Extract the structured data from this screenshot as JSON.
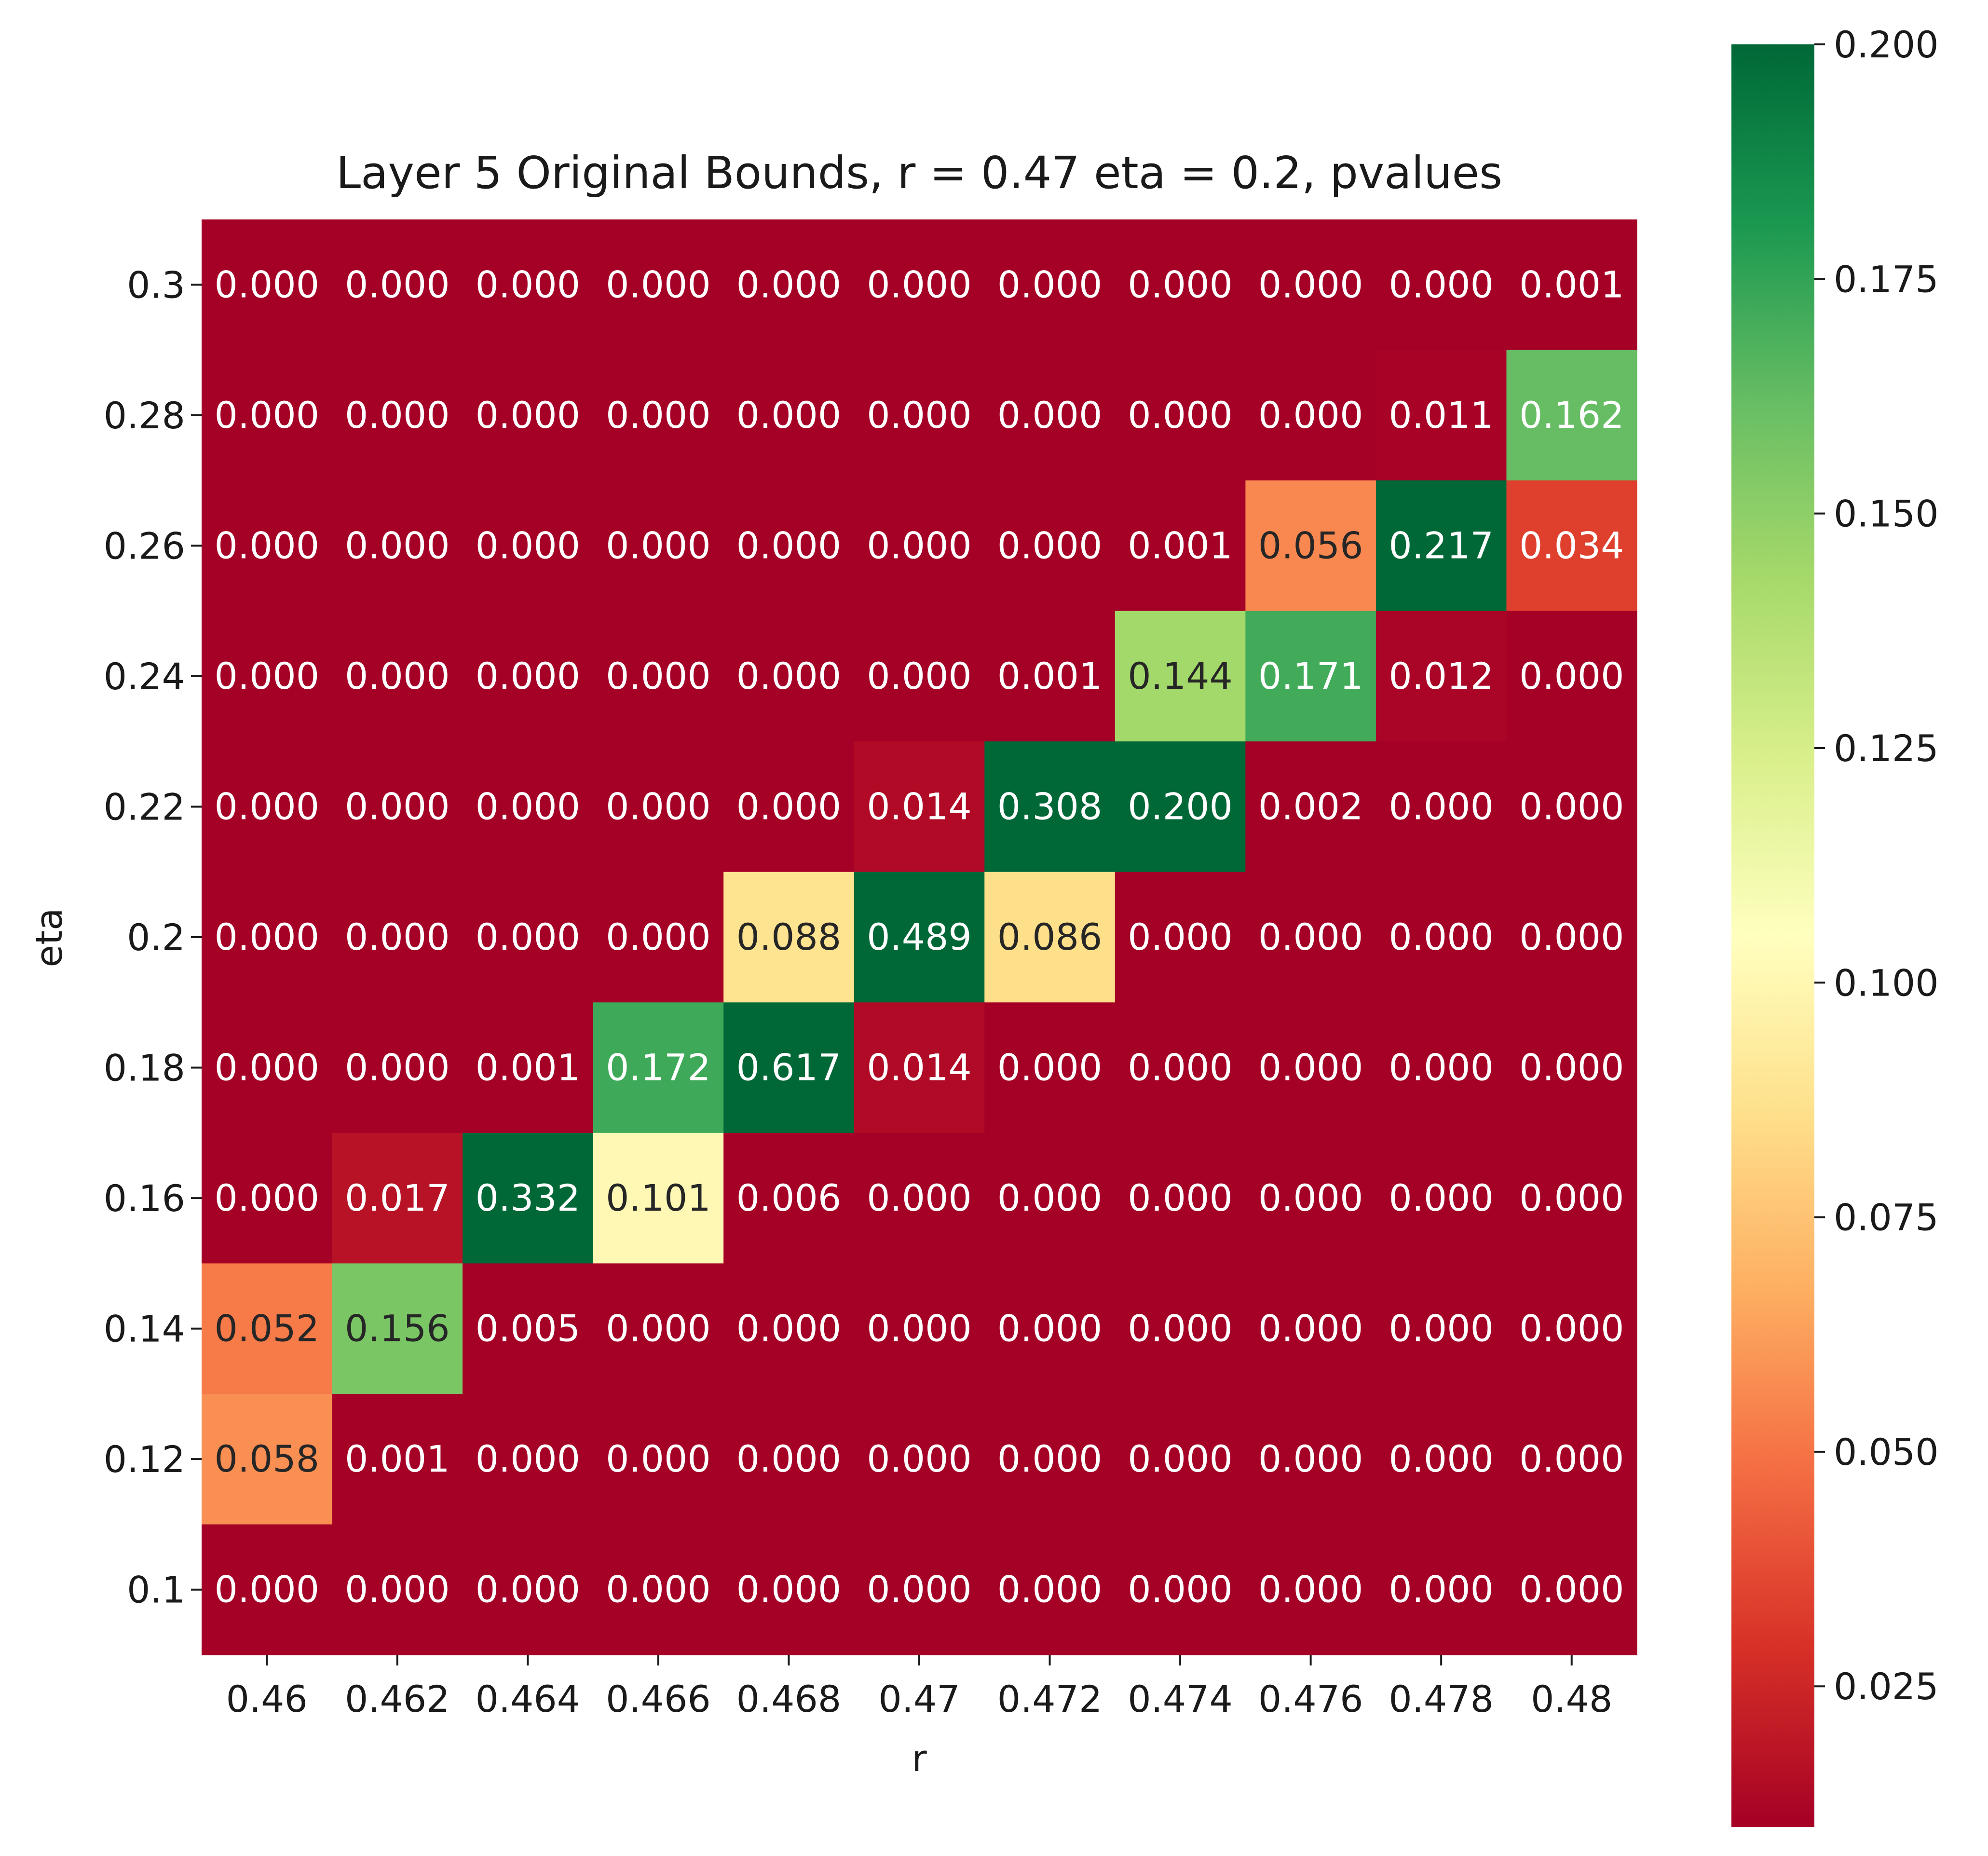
{
  "chart_data": {
    "type": "heatmap",
    "title": "Layer 5 Original Bounds, r = 0.47 eta = 0.2, pvalues",
    "xlabel": "r",
    "ylabel": "eta",
    "x_ticks": [
      "0.46",
      "0.462",
      "0.464",
      "0.466",
      "0.468",
      "0.47",
      "0.472",
      "0.474",
      "0.476",
      "0.478",
      "0.48"
    ],
    "y_ticks": [
      "0.3",
      "0.28",
      "0.26",
      "0.24",
      "0.22",
      "0.2",
      "0.18",
      "0.16",
      "0.14",
      "0.12",
      "0.1"
    ],
    "values": [
      [
        0.0,
        0.0,
        0.0,
        0.0,
        0.0,
        0.0,
        0.0,
        0.0,
        0.0,
        0.0,
        0.001
      ],
      [
        0.0,
        0.0,
        0.0,
        0.0,
        0.0,
        0.0,
        0.0,
        0.0,
        0.0,
        0.011,
        0.162
      ],
      [
        0.0,
        0.0,
        0.0,
        0.0,
        0.0,
        0.0,
        0.0,
        0.001,
        0.056,
        0.217,
        0.034
      ],
      [
        0.0,
        0.0,
        0.0,
        0.0,
        0.0,
        0.0,
        0.001,
        0.144,
        0.171,
        0.012,
        0.0
      ],
      [
        0.0,
        0.0,
        0.0,
        0.0,
        0.0,
        0.014,
        0.308,
        0.2,
        0.002,
        0.0,
        0.0
      ],
      [
        0.0,
        0.0,
        0.0,
        0.0,
        0.088,
        0.489,
        0.086,
        0.0,
        0.0,
        0.0,
        0.0
      ],
      [
        0.0,
        0.0,
        0.001,
        0.172,
        0.617,
        0.014,
        0.0,
        0.0,
        0.0,
        0.0,
        0.0
      ],
      [
        0.0,
        0.017,
        0.332,
        0.101,
        0.006,
        0.0,
        0.0,
        0.0,
        0.0,
        0.0,
        0.0
      ],
      [
        0.052,
        0.156,
        0.005,
        0.0,
        0.0,
        0.0,
        0.0,
        0.0,
        0.0,
        0.0,
        0.0
      ],
      [
        0.058,
        0.001,
        0.0,
        0.0,
        0.0,
        0.0,
        0.0,
        0.0,
        0.0,
        0.0,
        0.0
      ],
      [
        0.0,
        0.0,
        0.0,
        0.0,
        0.0,
        0.0,
        0.0,
        0.0,
        0.0,
        0.0,
        0.0
      ]
    ],
    "colorbar": {
      "colormap": "RdYlGn",
      "range": [
        0.01,
        0.2
      ],
      "ticks": [
        "0.025",
        "0.050",
        "0.075",
        "0.100",
        "0.125",
        "0.150",
        "0.175",
        "0.200"
      ]
    },
    "grid": false
  }
}
